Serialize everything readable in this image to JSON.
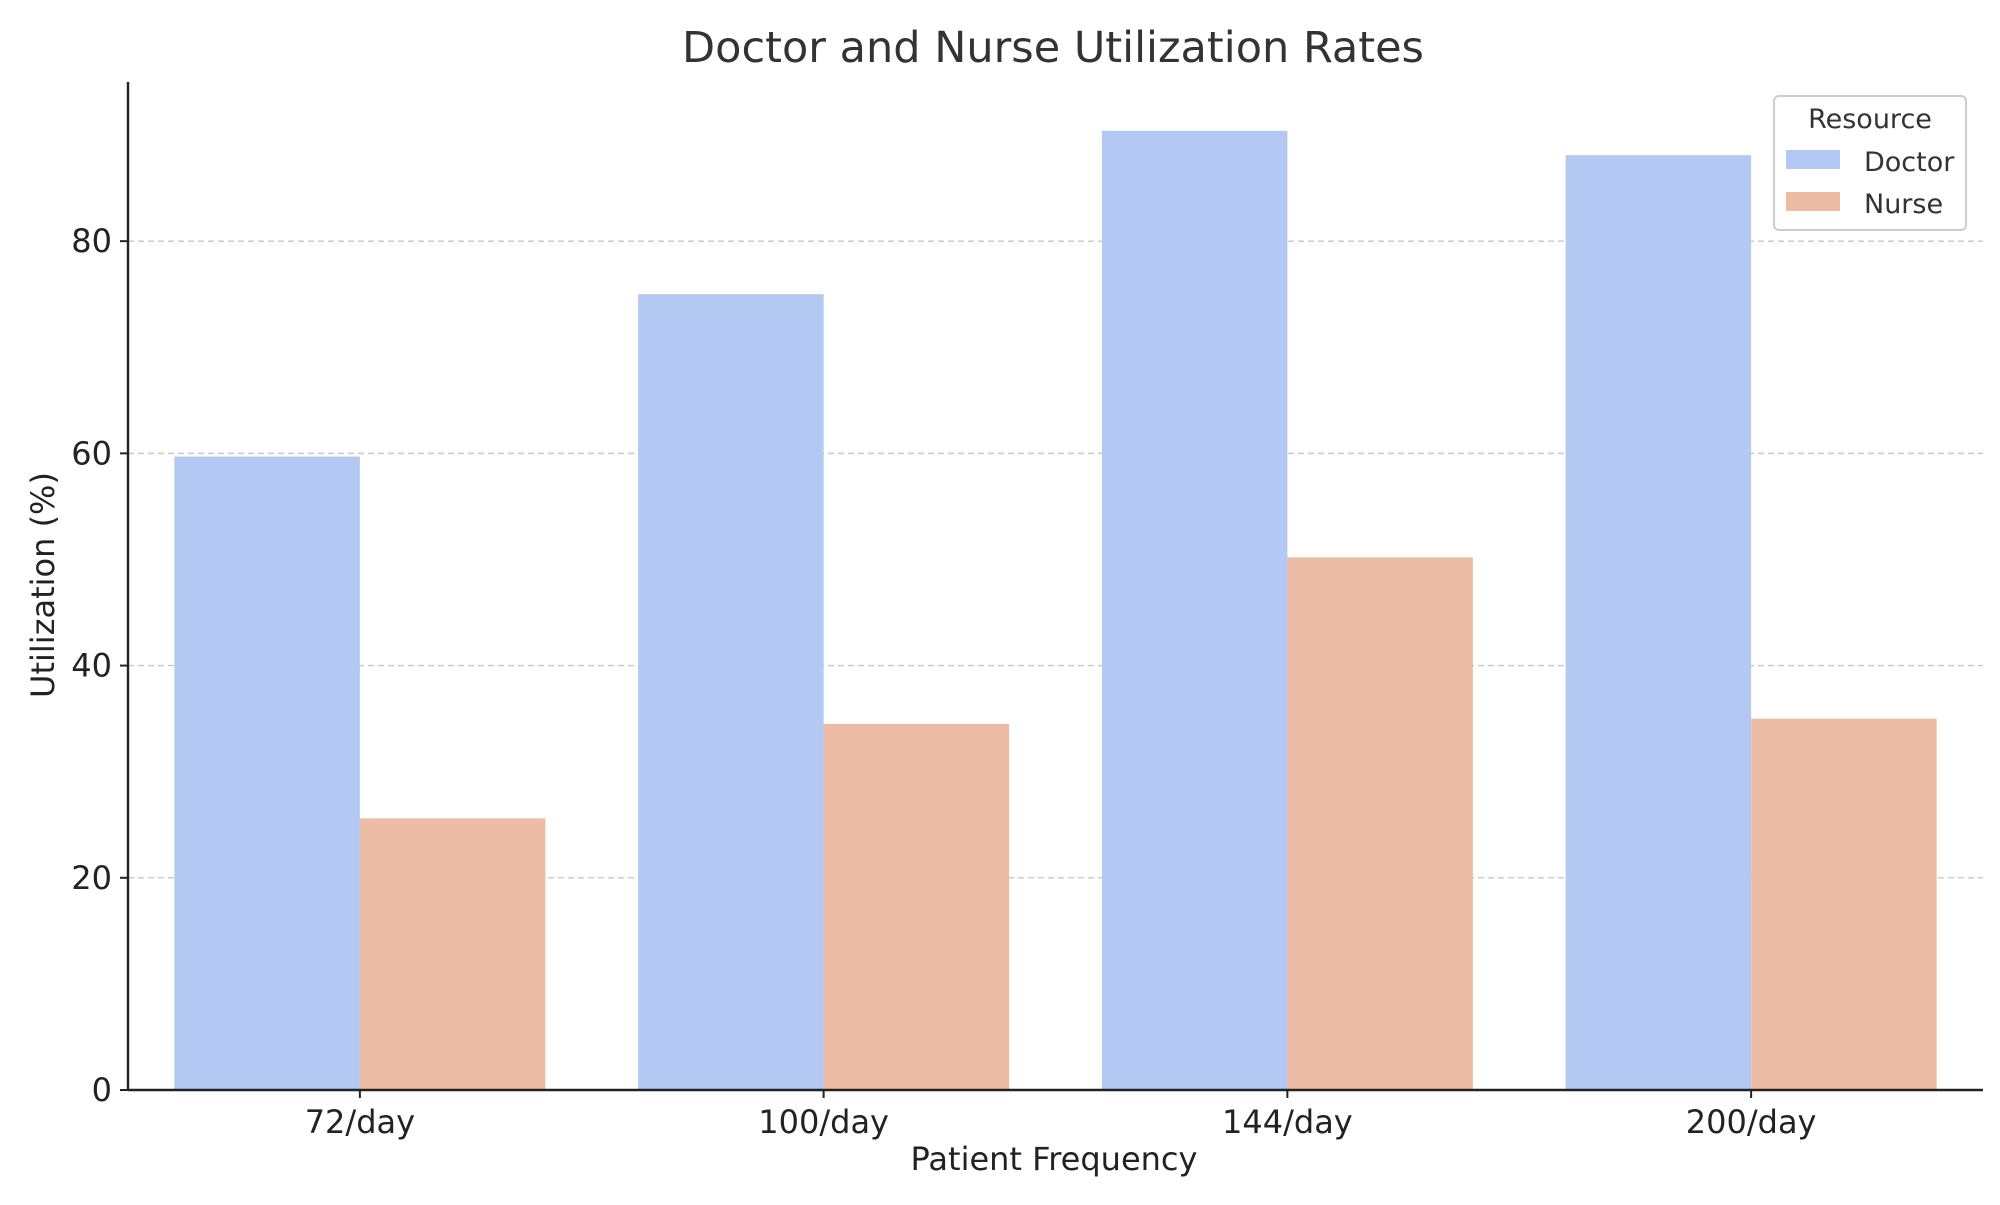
{
  "chart_data": {
    "type": "bar",
    "title": "Doctor and Nurse Utilization Rates",
    "xlabel": "Patient Frequency",
    "ylabel": "Utilization (%)",
    "categories": [
      "72/day",
      "100/day",
      "144/day",
      "200/day"
    ],
    "series": [
      {
        "name": "Doctor",
        "color": "#b3c8f2",
        "values": [
          59.7,
          75.0,
          90.4,
          88.1
        ]
      },
      {
        "name": "Nurse",
        "color": "#ecbca5",
        "values": [
          25.6,
          34.5,
          50.2,
          35.0
        ]
      }
    ],
    "ylim": [
      0,
      95
    ],
    "yticks": [
      0,
      20,
      40,
      60,
      80
    ],
    "grid": {
      "axis": "y",
      "style": "dashed"
    },
    "legend": {
      "title": "Resource",
      "placement": "top-right"
    }
  }
}
